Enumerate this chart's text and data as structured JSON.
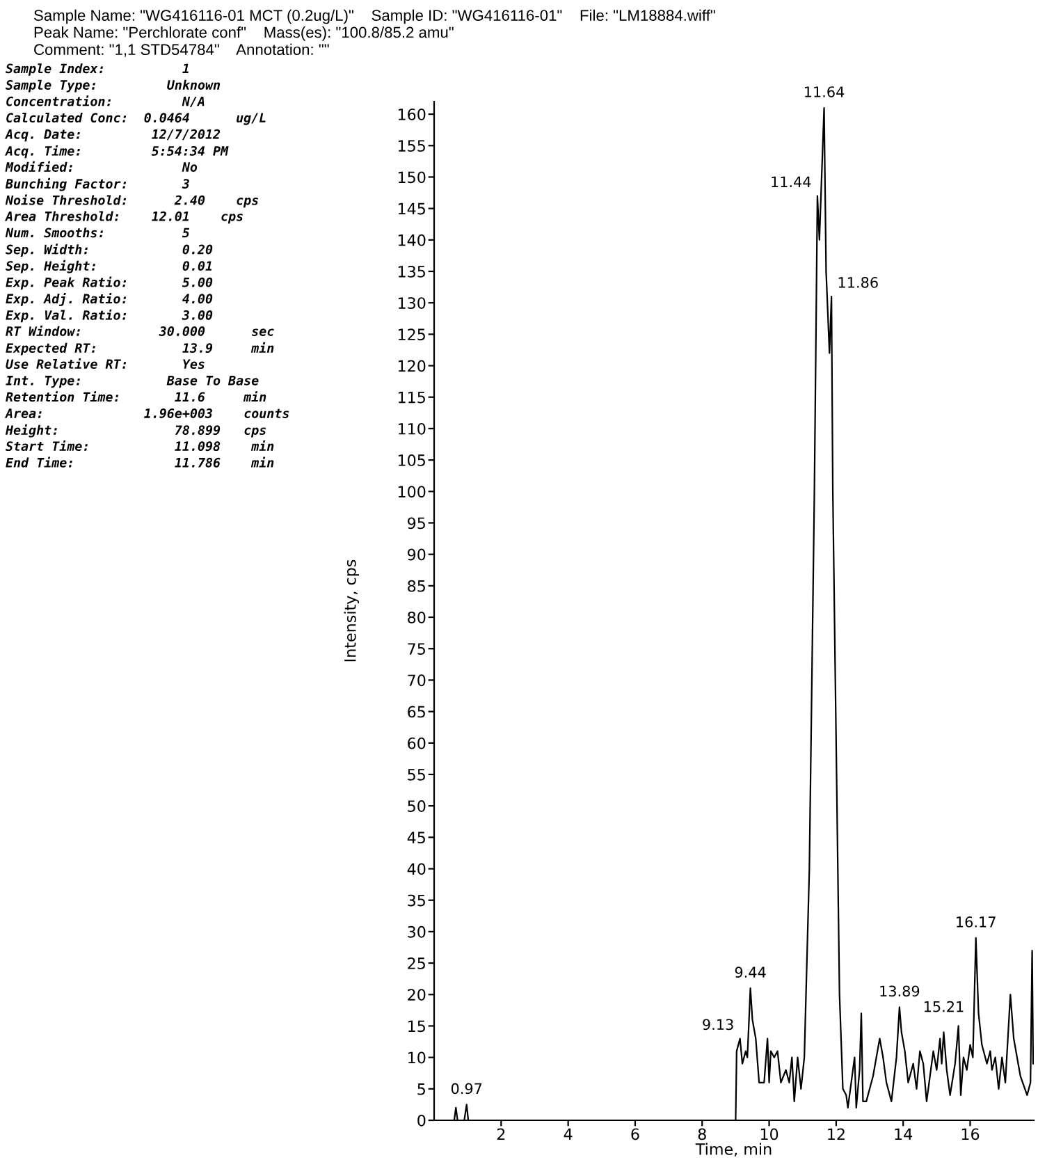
{
  "chart_data": {
    "type": "line",
    "title": "Sample Name: \"WG416116-01 MCT (0.2ug/L)\"    Sample ID: \"WG416116-01\"    File: \"LM18884.wiff\"",
    "subtitle": "Peak Name: \"Perchlorate conf\"    Mass(es): \"100.8/85.2 amu\"\nComment: \"1,1 STD54784\"    Annotation: \"\"",
    "xlabel": "Time, min",
    "ylabel": "Intensity, cps",
    "xlim": [
      0,
      17.9
    ],
    "ylim": [
      0,
      162
    ],
    "xticks": [
      2,
      4,
      6,
      8,
      10,
      12,
      14,
      16
    ],
    "yticks": [
      0,
      5,
      10,
      15,
      20,
      25,
      30,
      35,
      40,
      45,
      50,
      55,
      60,
      65,
      70,
      75,
      80,
      85,
      90,
      95,
      100,
      105,
      110,
      115,
      120,
      125,
      130,
      135,
      140,
      145,
      150,
      155,
      160
    ],
    "grid": false,
    "legend": false,
    "marker": "none",
    "line_style": "solid",
    "series": [
      {
        "color": "#000000",
        "x": [
          0,
          0.6,
          0.65,
          0.7,
          0.9,
          0.97,
          1.02,
          9.0,
          9.03,
          9.13,
          9.2,
          9.3,
          9.35,
          9.44,
          9.5,
          9.6,
          9.7,
          9.85,
          9.95,
          10.0,
          10.05,
          10.15,
          10.25,
          10.35,
          10.5,
          10.6,
          10.68,
          10.75,
          10.85,
          10.95,
          11.05,
          11.2,
          11.35,
          11.44,
          11.5,
          11.64,
          11.7,
          11.8,
          11.86,
          11.9,
          12.0,
          12.1,
          12.2,
          12.3,
          12.35,
          12.45,
          12.55,
          12.6,
          12.7,
          12.75,
          12.8,
          12.9,
          13.1,
          13.3,
          13.4,
          13.5,
          13.65,
          13.8,
          13.89,
          13.95,
          14.05,
          14.15,
          14.3,
          14.4,
          14.5,
          14.6,
          14.7,
          14.8,
          14.9,
          15.0,
          15.1,
          15.15,
          15.21,
          15.3,
          15.4,
          15.55,
          15.65,
          15.72,
          15.8,
          15.9,
          16.0,
          16.08,
          16.17,
          16.25,
          16.35,
          16.5,
          16.6,
          16.65,
          16.75,
          16.85,
          16.95,
          17.05,
          17.2,
          17.3,
          17.5,
          17.7,
          17.8,
          17.85,
          17.88
        ],
        "values": [
          0,
          0,
          2,
          0,
          0,
          2.5,
          0,
          0,
          11,
          13,
          9,
          11,
          10,
          21,
          16,
          13,
          6,
          6,
          13,
          6,
          11,
          10,
          11,
          6,
          8,
          6,
          10,
          3,
          10,
          5,
          10,
          40,
          100,
          147,
          140,
          161,
          135,
          122,
          131,
          100,
          60,
          20,
          5,
          4,
          2,
          6,
          10,
          2,
          8,
          17,
          3,
          3,
          7,
          13,
          10,
          6,
          3,
          10,
          18,
          14,
          11,
          6,
          9,
          5,
          11,
          9,
          3,
          7,
          11,
          8,
          13,
          9,
          14,
          8,
          4,
          9,
          15,
          4,
          10,
          8,
          12,
          10,
          29,
          17,
          12,
          9,
          11,
          8,
          10,
          5,
          10,
          6,
          20,
          13,
          7,
          4,
          6,
          27,
          9
        ]
      }
    ],
    "annotations": [
      "Sample Index:          1",
      "Sample Type:         Unknown",
      "Concentration:         N/A",
      "Calculated Conc:  0.0464      ug/L",
      "Acq. Date:         12/7/2012",
      "Acq. Time:         5:54:34 PM",
      "Modified:              No",
      "Bunching Factor:       3",
      "Noise Threshold:      2.40    cps",
      "Area Threshold:    12.01    cps",
      "Num. Smooths:          5",
      "Sep. Width:            0.20",
      "Sep. Height:           0.01",
      "Exp. Peak Ratio:       5.00",
      "Exp. Adj. Ratio:       4.00",
      "Exp. Val. Ratio:       3.00",
      "RT Window:          30.000      sec",
      "Expected RT:           13.9     min",
      "Use Relative RT:       Yes",
      "Int. Type:           Base To Base",
      "Retention Time:       11.6     min",
      "Area:             1.96e+003    counts",
      "Height:               78.899   cps",
      "Start Time:           11.098    min",
      "End Time:             11.786    min",
      {
        "text": "0.97",
        "x": 0.97,
        "y": 2.5
      },
      {
        "text": "9.13",
        "x": 9.13,
        "y": 13
      },
      {
        "text": "9.44",
        "x": 9.44,
        "y": 21
      },
      {
        "text": "11.44",
        "x": 11.44,
        "y": 147
      },
      {
        "text": "11.64",
        "x": 11.64,
        "y": 161
      },
      {
        "text": "11.86",
        "x": 11.86,
        "y": 131
      },
      {
        "text": "13.89",
        "x": 13.89,
        "y": 18
      },
      {
        "text": "15.21",
        "x": 15.21,
        "y": 14
      },
      {
        "text": "16.17",
        "x": 16.17,
        "y": 29
      }
    ]
  }
}
